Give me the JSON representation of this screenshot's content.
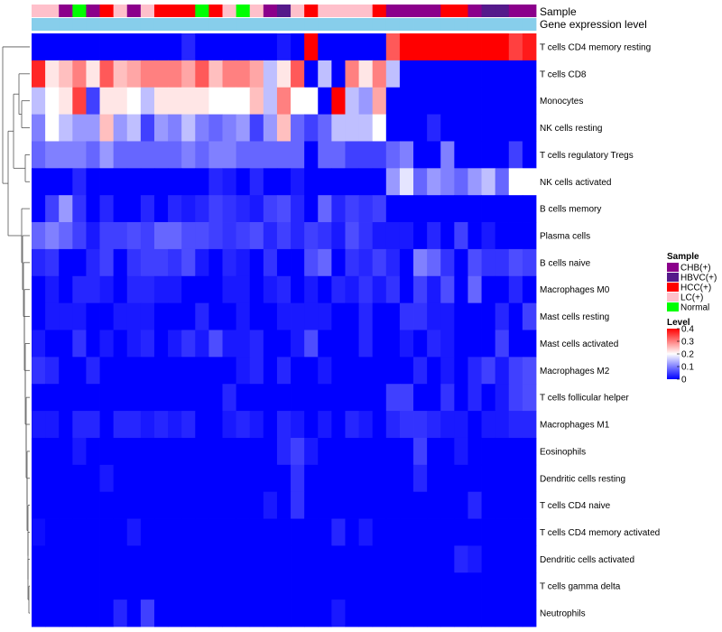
{
  "chart_data": {
    "type": "heatmap",
    "title": "",
    "annotation_labels": {
      "sample": "Sample",
      "gene_expression_level": "Gene expression level"
    },
    "rows": [
      "T cells CD4 memory resting",
      "T cells CD8",
      "Monocytes",
      "NK cells resting",
      "T cells regulatory  Tregs",
      "NK cells activated",
      "B cells memory",
      "Plasma cells",
      "B cells naive",
      "Macrophages M0",
      "Mast cells resting",
      "Mast cells activated",
      "Macrophages M2",
      "T cells follicular helper",
      "Macrophages M1",
      "Eosinophils",
      "Dendritic cells resting",
      "T cells CD4 naive",
      "T cells CD4 memory activated",
      "Dendritic cells activated",
      "T cells gamma delta",
      "Neutrophils"
    ],
    "sample_groups": [
      "LC(+)",
      "LC(+)",
      "CHB(+)",
      "Normal",
      "CHB(+)",
      "HCC(+)",
      "LC(+)",
      "CHB(+)",
      "LC(+)",
      "HCC(+)",
      "HCC(+)",
      "HCC(+)",
      "Normal",
      "HCC(+)",
      "LC(+)",
      "Normal",
      "LC(+)",
      "CHB(+)",
      "HBVC(+)",
      "LC(+)",
      "HCC(+)",
      "LC(+)",
      "LC(+)",
      "LC(+)",
      "LC(+)",
      "HCC(+)",
      "CHB(+)",
      "CHB(+)",
      "CHB(+)",
      "CHB(+)",
      "HCC(+)",
      "HCC(+)",
      "CHB(+)",
      "HBVC(+)",
      "HBVC(+)",
      "CHB(+)",
      "CHB(+)"
    ],
    "expression_level": [
      0,
      0,
      0,
      0,
      0,
      0,
      0,
      0,
      0,
      0,
      0,
      0,
      0,
      0,
      0,
      0,
      0,
      0,
      0,
      0,
      0,
      0,
      0,
      0,
      0,
      0,
      0,
      0,
      0,
      0,
      0,
      0,
      0,
      0,
      0,
      0,
      0
    ],
    "values": [
      [
        0,
        0,
        0,
        0,
        0,
        0,
        0,
        0,
        0,
        0,
        0,
        0.03,
        0,
        0,
        0,
        0,
        0,
        0,
        0.02,
        0,
        0.4,
        0,
        0,
        0,
        0,
        0,
        0.33,
        0.4,
        0.4,
        0.4,
        0.4,
        0.4,
        0.4,
        0.4,
        0.4,
        0.35,
        0.38
      ],
      [
        0.37,
        0.22,
        0.25,
        0.3,
        0.22,
        0.33,
        0.25,
        0.27,
        0.3,
        0.3,
        0.3,
        0.27,
        0.33,
        0.25,
        0.3,
        0.3,
        0.27,
        0.15,
        0.22,
        0.33,
        0,
        0.15,
        0,
        0.3,
        0.22,
        0.3,
        0.15,
        0,
        0,
        0,
        0,
        0,
        0,
        0,
        0,
        0,
        0
      ],
      [
        0.15,
        0.2,
        0.22,
        0.35,
        0.05,
        0.22,
        0.22,
        0.2,
        0.15,
        0.22,
        0.22,
        0.22,
        0.22,
        0.2,
        0.2,
        0.2,
        0.25,
        0.15,
        0.3,
        0.2,
        0.2,
        0,
        0.4,
        0.15,
        0.12,
        0.27,
        0,
        0,
        0,
        0,
        0,
        0,
        0,
        0,
        0,
        0,
        0
      ],
      [
        0.1,
        0.2,
        0.15,
        0.12,
        0.12,
        0.25,
        0.12,
        0.15,
        0.05,
        0.12,
        0.1,
        0.15,
        0.1,
        0.08,
        0.1,
        0.12,
        0.05,
        0.12,
        0.25,
        0.08,
        0.05,
        0.08,
        0.15,
        0.15,
        0.15,
        0.2,
        0,
        0,
        0,
        0.03,
        0,
        0,
        0,
        0,
        0,
        0,
        0
      ],
      [
        0.08,
        0.1,
        0.1,
        0.1,
        0.08,
        0.12,
        0.08,
        0.08,
        0.08,
        0.08,
        0.08,
        0.1,
        0.08,
        0.1,
        0.1,
        0.08,
        0.08,
        0.08,
        0.08,
        0.08,
        0,
        0.08,
        0.08,
        0.05,
        0.05,
        0.05,
        0.08,
        0.1,
        0,
        0,
        0.1,
        0,
        0,
        0,
        0,
        0.05,
        0
      ],
      [
        0,
        0,
        0,
        0.03,
        0,
        0,
        0,
        0,
        0,
        0,
        0,
        0,
        0,
        0.03,
        0.02,
        0,
        0.03,
        0,
        0,
        0.02,
        0,
        0,
        0,
        0,
        0,
        0,
        0.12,
        0.18,
        0.08,
        0.12,
        0.1,
        0.08,
        0.12,
        0.15,
        0.08,
        0.2,
        0.2
      ],
      [
        0,
        0.05,
        0.12,
        0.04,
        0,
        0.03,
        0,
        0,
        0.03,
        0,
        0.03,
        0.02,
        0.03,
        0.05,
        0.04,
        0.03,
        0.02,
        0.05,
        0.06,
        0.03,
        0,
        0.08,
        0.03,
        0.05,
        0.04,
        0.05,
        0,
        0,
        0,
        0,
        0,
        0,
        0,
        0,
        0,
        0,
        0
      ],
      [
        0.08,
        0.1,
        0.08,
        0.05,
        0.02,
        0.05,
        0.05,
        0.06,
        0.05,
        0.08,
        0.08,
        0.06,
        0.06,
        0.05,
        0.04,
        0.05,
        0.06,
        0.03,
        0.05,
        0.03,
        0.05,
        0.04,
        0.02,
        0.06,
        0.04,
        0.02,
        0.02,
        0.02,
        0,
        0.03,
        0,
        0.05,
        0,
        0.02,
        0,
        0,
        0
      ],
      [
        0.03,
        0.04,
        0,
        0,
        0.03,
        0.05,
        0,
        0.04,
        0.05,
        0.05,
        0.04,
        0.06,
        0.02,
        0,
        0.03,
        0.02,
        0,
        0.04,
        0,
        0,
        0.06,
        0.08,
        0,
        0.04,
        0.03,
        0.05,
        0.03,
        0,
        0.1,
        0.08,
        0.04,
        0,
        0.06,
        0.04,
        0.04,
        0.06,
        0.05
      ],
      [
        0,
        0.02,
        0,
        0.03,
        0.03,
        0.02,
        0,
        0.03,
        0.03,
        0.02,
        0.02,
        0,
        0,
        0,
        0.02,
        0.02,
        0,
        0.02,
        0.03,
        0,
        0.02,
        0,
        0.03,
        0.02,
        0.04,
        0.02,
        0.04,
        0,
        0.05,
        0.02,
        0.06,
        0,
        0.08,
        0,
        0,
        0.03,
        0
      ],
      [
        0,
        0.02,
        0.02,
        0.02,
        0,
        0,
        0.02,
        0.02,
        0.02,
        0,
        0,
        0,
        0.03,
        0,
        0,
        0.02,
        0,
        0,
        0.02,
        0.02,
        0.02,
        0.02,
        0,
        0,
        0.03,
        0,
        0,
        0.04,
        0.04,
        0.02,
        0.02,
        0,
        0,
        0,
        0.03,
        0,
        0.05
      ],
      [
        0.02,
        0,
        0,
        0.04,
        0,
        0.02,
        0,
        0.02,
        0.03,
        0,
        0.02,
        0.04,
        0.02,
        0.06,
        0.02,
        0.02,
        0.03,
        0,
        0,
        0.02,
        0.06,
        0,
        0,
        0,
        0.03,
        0,
        0,
        0.02,
        0,
        0.03,
        0.02,
        0,
        0,
        0,
        0.05,
        0,
        0
      ],
      [
        0.04,
        0.03,
        0,
        0,
        0.03,
        0,
        0,
        0,
        0,
        0,
        0,
        0,
        0,
        0,
        0,
        0.02,
        0.03,
        0,
        0.03,
        0,
        0,
        0.02,
        0,
        0,
        0,
        0,
        0,
        0,
        0.03,
        0,
        0.02,
        0,
        0.03,
        0.05,
        0.02,
        0.05,
        0.06
      ],
      [
        0,
        0,
        0,
        0,
        0,
        0,
        0,
        0,
        0,
        0,
        0,
        0,
        0,
        0,
        0.03,
        0,
        0,
        0,
        0,
        0,
        0,
        0,
        0,
        0,
        0,
        0,
        0.05,
        0.05,
        0,
        0,
        0.04,
        0,
        0.03,
        0,
        0.02,
        0.05,
        0.06
      ],
      [
        0.02,
        0.02,
        0,
        0.03,
        0.03,
        0,
        0.03,
        0.03,
        0.02,
        0.03,
        0.02,
        0.03,
        0,
        0,
        0.02,
        0.03,
        0.02,
        0,
        0.03,
        0.02,
        0,
        0.02,
        0,
        0.03,
        0.02,
        0,
        0.03,
        0.04,
        0.04,
        0.03,
        0.02,
        0.02,
        0,
        0.02,
        0.02,
        0.03,
        0.03
      ],
      [
        0,
        0,
        0,
        0.02,
        0,
        0,
        0,
        0,
        0,
        0,
        0,
        0,
        0,
        0,
        0,
        0,
        0,
        0,
        0.03,
        0.05,
        0.02,
        0,
        0,
        0,
        0,
        0,
        0,
        0,
        0.05,
        0,
        0,
        0.02,
        0,
        0,
        0,
        0,
        0
      ],
      [
        0,
        0,
        0,
        0,
        0,
        0.02,
        0,
        0,
        0,
        0,
        0,
        0,
        0,
        0,
        0,
        0,
        0,
        0,
        0,
        0.04,
        0,
        0,
        0,
        0,
        0,
        0,
        0,
        0,
        0.03,
        0,
        0,
        0,
        0,
        0,
        0,
        0,
        0
      ],
      [
        0,
        0,
        0,
        0,
        0,
        0,
        0,
        0,
        0,
        0,
        0,
        0,
        0,
        0,
        0,
        0,
        0,
        0.02,
        0,
        0.04,
        0,
        0,
        0,
        0,
        0,
        0,
        0,
        0,
        0,
        0,
        0,
        0,
        0.03,
        0,
        0,
        0,
        0
      ],
      [
        0.01,
        0,
        0,
        0,
        0,
        0,
        0,
        0.02,
        0,
        0,
        0,
        0,
        0,
        0,
        0,
        0,
        0,
        0,
        0,
        0,
        0,
        0,
        0.03,
        0,
        0.02,
        0,
        0,
        0,
        0,
        0,
        0,
        0,
        0,
        0,
        0,
        0,
        0
      ],
      [
        0,
        0,
        0,
        0,
        0,
        0,
        0,
        0,
        0,
        0,
        0,
        0,
        0,
        0,
        0,
        0,
        0,
        0,
        0,
        0,
        0,
        0,
        0,
        0,
        0,
        0,
        0,
        0,
        0,
        0,
        0,
        0.03,
        0.02,
        0,
        0,
        0,
        0
      ],
      [
        0,
        0,
        0,
        0,
        0,
        0,
        0,
        0,
        0,
        0,
        0,
        0,
        0,
        0,
        0,
        0,
        0,
        0,
        0,
        0,
        0,
        0,
        0,
        0,
        0,
        0,
        0,
        0,
        0,
        0,
        0,
        0,
        0,
        0,
        0,
        0,
        0
      ],
      [
        0,
        0,
        0,
        0,
        0,
        0,
        0.03,
        0,
        0.05,
        0,
        0,
        0,
        0,
        0,
        0,
        0,
        0,
        0,
        0,
        0,
        0,
        0,
        0.02,
        0,
        0,
        0,
        0,
        0,
        0,
        0,
        0,
        0,
        0,
        0,
        0,
        0,
        0
      ]
    ],
    "sample_legend": {
      "title": "Sample",
      "entries": [
        {
          "label": "CHB(+)",
          "color": "#8B008B"
        },
        {
          "label": "HBVC(+)",
          "color": "#551A8B"
        },
        {
          "label": "HCC(+)",
          "color": "#FF0000"
        },
        {
          "label": "LC(+)",
          "color": "#FFC0CB"
        },
        {
          "label": "Normal",
          "color": "#00FF00"
        }
      ]
    },
    "level_legend": {
      "title": "Level",
      "ticks": [
        0.4,
        0.3,
        0.2,
        0.1,
        0
      ],
      "tick_labels": [
        "0.4",
        "0.3",
        "0.2",
        "0.1",
        "0"
      ]
    },
    "color_scale": {
      "min": 0,
      "mid": 0.2,
      "max": 0.4,
      "low_color": "#0000FF",
      "mid_color": "#FFFFFF",
      "high_color": "#FF0000"
    },
    "expression_bar_color": "#87CEEB",
    "dendrogram": "row-clustering"
  }
}
